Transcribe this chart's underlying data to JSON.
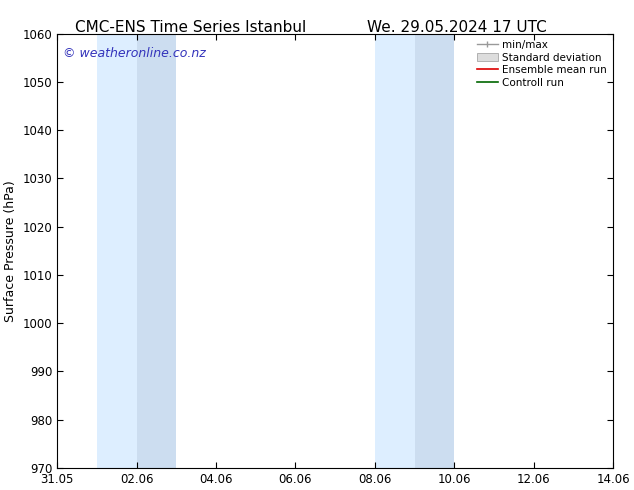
{
  "title_left": "CMC-ENS Time Series Istanbul",
  "title_right": "We. 29.05.2024 17 UTC",
  "ylabel": "Surface Pressure (hPa)",
  "ylim": [
    970,
    1060
  ],
  "yticks": [
    970,
    980,
    990,
    1000,
    1010,
    1020,
    1030,
    1040,
    1050,
    1060
  ],
  "xtick_positions": [
    0,
    2,
    4,
    6,
    8,
    10,
    12,
    14
  ],
  "xtick_labels": [
    "31.05",
    "02.06",
    "04.06",
    "06.06",
    "08.06",
    "10.06",
    "12.06",
    "14.06"
  ],
  "xlim": [
    0,
    14
  ],
  "bg_color": "#ffffff",
  "plot_bg_color": "#ffffff",
  "shaded_regions": [
    {
      "x_start": 1.0,
      "x_end": 2.0,
      "color": "#ddeeff"
    },
    {
      "x_start": 2.0,
      "x_end": 3.0,
      "color": "#ccddf0"
    },
    {
      "x_start": 8.0,
      "x_end": 9.0,
      "color": "#ddeeff"
    },
    {
      "x_start": 9.0,
      "x_end": 10.0,
      "color": "#ccddf0"
    }
  ],
  "watermark_text": "© weatheronline.co.nz",
  "watermark_color": "#3333bb",
  "watermark_fontsize": 9,
  "legend_labels": [
    "min/max",
    "Standard deviation",
    "Ensemble mean run",
    "Controll run"
  ],
  "legend_colors_line": [
    "#999999",
    "#cccccc",
    "#dd0000",
    "#006600"
  ],
  "legend_patch_color": "#dddddd",
  "title_fontsize": 11,
  "axis_label_fontsize": 9,
  "tick_fontsize": 8.5,
  "legend_fontsize": 7.5
}
